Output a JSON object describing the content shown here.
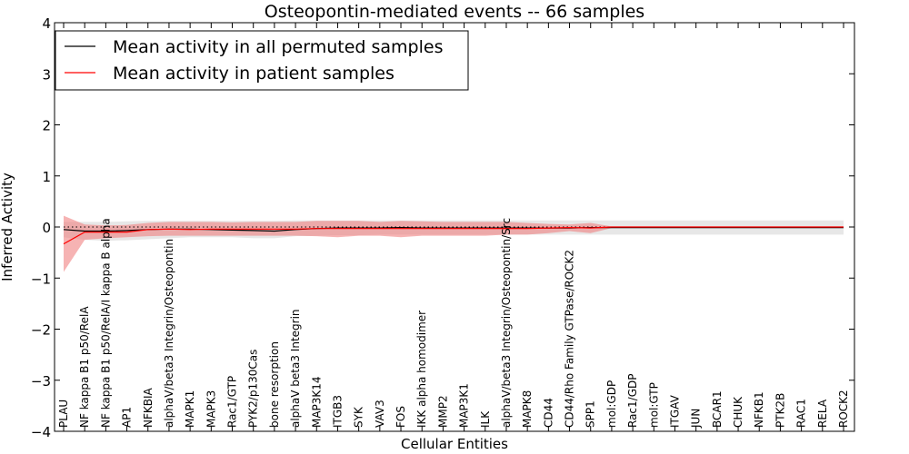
{
  "chart_data": {
    "type": "line",
    "title": "Osteopontin-mediated events -- 66 samples",
    "xlabel": "Cellular Entities",
    "ylabel": "Inferred Activity",
    "ylim": [
      -4,
      4
    ],
    "yticks": [
      "4",
      "3",
      "2",
      "1",
      "0",
      "−1",
      "−2",
      "−3",
      "−4"
    ],
    "ytick_values": [
      4,
      3,
      2,
      1,
      0,
      -1,
      -2,
      -3,
      -4
    ],
    "legend_position": "top-left",
    "categories": [
      "PLAU",
      "NF kappa B1 p50/RelA",
      "NF kappa B1 p50/RelA/I kappa B alpha",
      "AP1",
      "NFKBIA",
      "alphaV/beta3 Integrin/Osteopontin",
      "MAPK1",
      "MAPK3",
      "Rac1/GTP",
      "PYK2/p130Cas",
      "bone resorption",
      "alphaV beta3 Integrin",
      "MAP3K14",
      "ITGB3",
      "SYK",
      "VAV3",
      "FOS",
      "IKK alpha homodimer",
      "MMP2",
      "MAP3K1",
      "ILK",
      "alphaV/beta3 Integrin/Osteopontin/Src",
      "MAPK8",
      "CD44",
      "CD44/Rho Family GTPase/ROCK2",
      "SPP1",
      "mol:GDP",
      "Rac1/GDP",
      "mol:GTP",
      "ITGAV",
      "JUN",
      "BCAR1",
      "CHUK",
      "NFKB1",
      "PTK2B",
      "RAC1",
      "RELA",
      "ROCK2"
    ],
    "series": [
      {
        "name": "Mean activity in all permuted samples",
        "color": "#000000",
        "band_color": "#d3d3d3",
        "values": [
          -0.05,
          -0.08,
          -0.08,
          -0.07,
          -0.05,
          -0.04,
          -0.04,
          -0.05,
          -0.06,
          -0.07,
          -0.08,
          -0.05,
          -0.03,
          -0.02,
          -0.02,
          -0.02,
          -0.01,
          -0.02,
          -0.02,
          -0.02,
          -0.02,
          -0.02,
          -0.02,
          -0.02,
          -0.02,
          -0.01,
          -0.01,
          -0.01,
          -0.01,
          -0.01,
          -0.01,
          -0.01,
          -0.01,
          -0.01,
          -0.01,
          -0.01,
          -0.01,
          -0.01
        ],
        "upper": [
          0.1,
          0.1,
          0.1,
          0.11,
          0.12,
          0.12,
          0.12,
          0.12,
          0.12,
          0.12,
          0.12,
          0.13,
          0.13,
          0.13,
          0.13,
          0.13,
          0.13,
          0.13,
          0.13,
          0.13,
          0.13,
          0.13,
          0.13,
          0.13,
          0.13,
          0.13,
          0.13,
          0.13,
          0.13,
          0.13,
          0.13,
          0.13,
          0.13,
          0.13,
          0.13,
          0.13,
          0.13,
          0.13
        ],
        "lower": [
          -0.2,
          -0.25,
          -0.27,
          -0.26,
          -0.24,
          -0.22,
          -0.2,
          -0.2,
          -0.2,
          -0.22,
          -0.22,
          -0.18,
          -0.17,
          -0.16,
          -0.16,
          -0.15,
          -0.15,
          -0.15,
          -0.15,
          -0.15,
          -0.15,
          -0.15,
          -0.15,
          -0.15,
          -0.15,
          -0.15,
          -0.15,
          -0.15,
          -0.15,
          -0.15,
          -0.15,
          -0.15,
          -0.15,
          -0.15,
          -0.15,
          -0.15,
          -0.15,
          -0.15
        ]
      },
      {
        "name": "Mean activity in patient samples",
        "color": "#ff0000",
        "band_color": "#f08080",
        "values": [
          -0.33,
          -0.1,
          -0.1,
          -0.1,
          -0.05,
          -0.04,
          -0.05,
          -0.04,
          -0.04,
          -0.04,
          -0.04,
          -0.04,
          -0.03,
          -0.03,
          -0.03,
          -0.03,
          -0.03,
          -0.03,
          -0.03,
          -0.03,
          -0.03,
          -0.03,
          -0.03,
          -0.02,
          -0.01,
          -0.02,
          0.0,
          0.0,
          0.0,
          0.0,
          0.0,
          0.0,
          0.0,
          0.0,
          0.0,
          0.0,
          0.0,
          0.0
        ],
        "upper": [
          0.22,
          0.05,
          0.03,
          0.04,
          0.08,
          0.1,
          0.1,
          0.1,
          0.09,
          0.1,
          0.1,
          0.1,
          0.12,
          0.12,
          0.12,
          0.1,
          0.12,
          0.11,
          0.1,
          0.1,
          0.1,
          0.1,
          0.08,
          0.06,
          0.05,
          0.08,
          0.01,
          0.01,
          0.01,
          0.01,
          0.01,
          0.01,
          0.01,
          0.01,
          0.01,
          0.01,
          0.01,
          0.01
        ],
        "lower": [
          -0.88,
          -0.25,
          -0.22,
          -0.2,
          -0.18,
          -0.17,
          -0.17,
          -0.17,
          -0.17,
          -0.17,
          -0.17,
          -0.17,
          -0.18,
          -0.2,
          -0.17,
          -0.17,
          -0.2,
          -0.17,
          -0.17,
          -0.17,
          -0.17,
          -0.15,
          -0.15,
          -0.12,
          -0.08,
          -0.12,
          -0.02,
          -0.02,
          -0.02,
          -0.02,
          -0.02,
          -0.02,
          -0.02,
          -0.02,
          -0.02,
          -0.02,
          -0.02,
          -0.02
        ]
      }
    ],
    "zero_line": "dotted"
  }
}
